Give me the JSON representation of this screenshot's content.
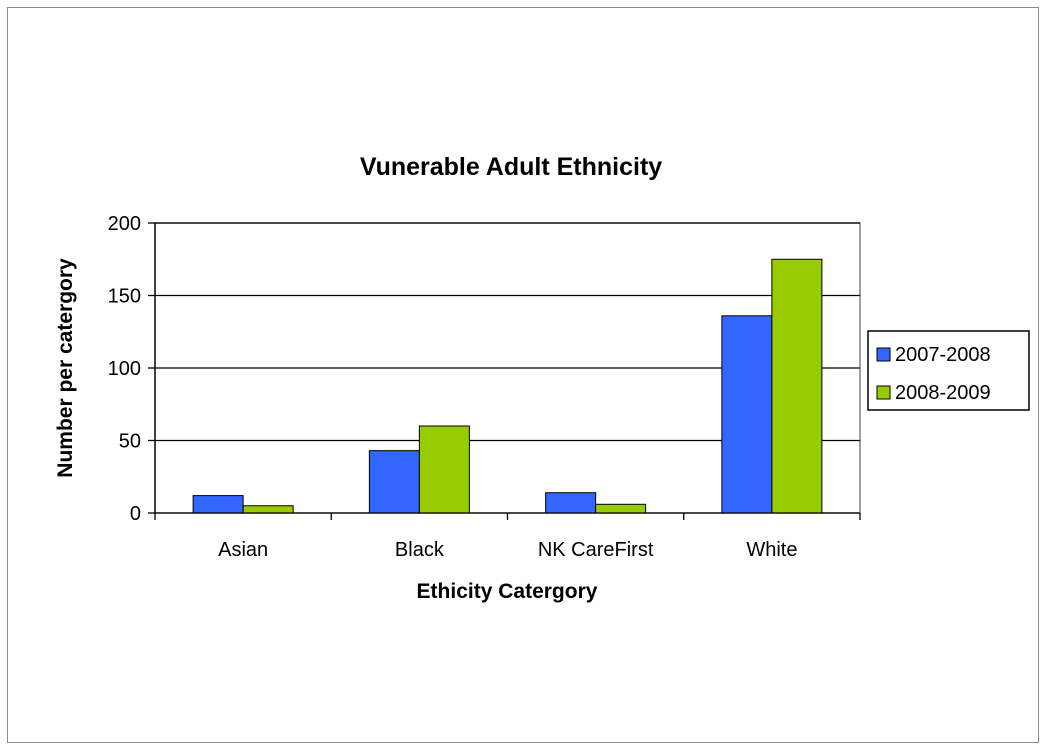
{
  "chart_data": {
    "type": "bar",
    "title": "Vunerable Adult Ethnicity",
    "xlabel": "Ethicity Catergory",
    "ylabel": "Number per catergory",
    "categories": [
      "Asian",
      "Black",
      "NK CareFirst",
      "White"
    ],
    "series": [
      {
        "name": "2007-2008",
        "values": [
          12,
          43,
          14,
          136
        ],
        "color": "#3366ff"
      },
      {
        "name": "2008-2009",
        "values": [
          5,
          60,
          6,
          175
        ],
        "color": "#99cc00"
      }
    ],
    "ylim": [
      0,
      200
    ],
    "yticks": [
      0,
      50,
      100,
      150,
      200
    ],
    "grid": true,
    "legend_position": "right"
  }
}
